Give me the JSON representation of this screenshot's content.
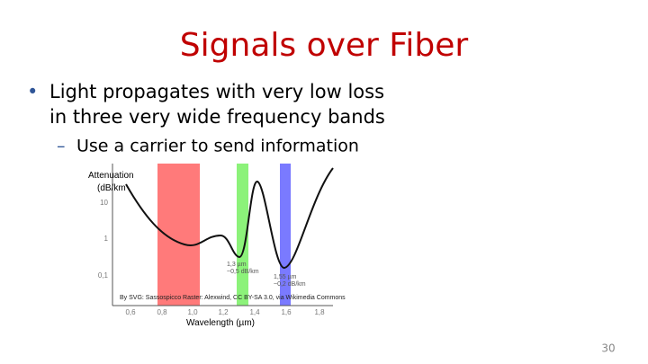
{
  "slide": {
    "title": "Signals over Fiber",
    "bullets": [
      {
        "lines": [
          "Light propagates with very low loss",
          "in three very wide frequency bands"
        ]
      },
      {
        "text": "Use a carrier to send information"
      }
    ],
    "figure": {
      "y_label": [
        "Attenuation",
        "(dB/km"
      ],
      "y_ticks": [
        "10",
        "1",
        "0,1"
      ],
      "x_ticks": [
        "0,6",
        "0,8",
        "1,0",
        "1,2",
        "1,4",
        "1,6",
        "1,8"
      ],
      "x_label": "Wavelength (µm)",
      "annotations": [
        [
          "1,3 µm",
          "~0,5 dB/km"
        ],
        [
          "1,55 µm",
          "~0,2 dB/km"
        ]
      ],
      "credit": "By SVG: Sassospicco Raster: Alexwind, CC BY-SA 3.0, via Wikimedia Commons"
    },
    "page_number": "30"
  }
}
